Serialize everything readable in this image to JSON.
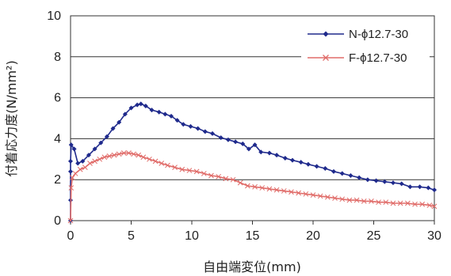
{
  "chart_data": {
    "type": "line",
    "title": "",
    "xlabel": "自由端変位(mm)",
    "ylabel": "付着応力度(N/mm²)",
    "xlim": [
      0,
      30
    ],
    "ylim": [
      0,
      10
    ],
    "x_ticks": [
      "0",
      "5",
      "10",
      "15",
      "20",
      "25",
      "30"
    ],
    "y_ticks": [
      "0",
      "2",
      "4",
      "6",
      "8",
      "10"
    ],
    "grid": "horizontal",
    "legend_position": "top-right",
    "series": [
      {
        "name": "N-ϕ12.7-30",
        "color": "#1f2a8c",
        "marker": "diamond",
        "points": [
          [
            0,
            0
          ],
          [
            0,
            1.0
          ],
          [
            0,
            2.4
          ],
          [
            0,
            2.9
          ],
          [
            0.05,
            3.7
          ],
          [
            0.3,
            3.5
          ],
          [
            0.6,
            2.8
          ],
          [
            1.0,
            2.9
          ],
          [
            1.5,
            3.2
          ],
          [
            2.0,
            3.5
          ],
          [
            2.5,
            3.8
          ],
          [
            3.0,
            4.1
          ],
          [
            3.5,
            4.5
          ],
          [
            4.0,
            4.8
          ],
          [
            4.5,
            5.2
          ],
          [
            5.0,
            5.5
          ],
          [
            5.5,
            5.65
          ],
          [
            5.8,
            5.7
          ],
          [
            6.2,
            5.6
          ],
          [
            6.7,
            5.4
          ],
          [
            7.3,
            5.3
          ],
          [
            7.8,
            5.2
          ],
          [
            8.3,
            5.1
          ],
          [
            8.8,
            4.9
          ],
          [
            9.3,
            4.7
          ],
          [
            9.9,
            4.6
          ],
          [
            10.5,
            4.5
          ],
          [
            11.1,
            4.35
          ],
          [
            11.7,
            4.25
          ],
          [
            12.4,
            4.05
          ],
          [
            13.0,
            3.95
          ],
          [
            13.6,
            3.85
          ],
          [
            14.2,
            3.75
          ],
          [
            14.7,
            3.5
          ],
          [
            15.2,
            3.7
          ],
          [
            15.7,
            3.35
          ],
          [
            16.4,
            3.3
          ],
          [
            17.0,
            3.2
          ],
          [
            17.7,
            3.05
          ],
          [
            18.3,
            2.95
          ],
          [
            19.0,
            2.85
          ],
          [
            19.6,
            2.75
          ],
          [
            20.3,
            2.65
          ],
          [
            21.0,
            2.55
          ],
          [
            21.7,
            2.4
          ],
          [
            22.4,
            2.3
          ],
          [
            23.1,
            2.2
          ],
          [
            23.8,
            2.1
          ],
          [
            24.5,
            2.0
          ],
          [
            25.2,
            1.95
          ],
          [
            25.9,
            1.9
          ],
          [
            26.6,
            1.85
          ],
          [
            27.3,
            1.8
          ],
          [
            28.0,
            1.65
          ],
          [
            28.8,
            1.65
          ],
          [
            29.5,
            1.6
          ],
          [
            30,
            1.5
          ]
        ]
      },
      {
        "name": "F-ϕ12.7-30",
        "color": "#e06b68",
        "marker": "x",
        "points": [
          [
            0,
            0
          ],
          [
            0.05,
            1.6
          ],
          [
            0.15,
            2.1
          ],
          [
            0.4,
            2.3
          ],
          [
            0.8,
            2.5
          ],
          [
            1.2,
            2.6
          ],
          [
            1.6,
            2.8
          ],
          [
            2.0,
            2.9
          ],
          [
            2.4,
            3.0
          ],
          [
            2.8,
            3.1
          ],
          [
            3.2,
            3.15
          ],
          [
            3.6,
            3.2
          ],
          [
            4.0,
            3.25
          ],
          [
            4.4,
            3.3
          ],
          [
            4.8,
            3.3
          ],
          [
            5.2,
            3.25
          ],
          [
            5.6,
            3.2
          ],
          [
            6.0,
            3.1
          ],
          [
            6.5,
            3.0
          ],
          [
            7.0,
            2.9
          ],
          [
            7.5,
            2.8
          ],
          [
            8.0,
            2.7
          ],
          [
            8.6,
            2.6
          ],
          [
            9.2,
            2.5
          ],
          [
            9.8,
            2.45
          ],
          [
            10.4,
            2.4
          ],
          [
            11.0,
            2.3
          ],
          [
            11.6,
            2.2
          ],
          [
            12.2,
            2.15
          ],
          [
            12.8,
            2.05
          ],
          [
            13.4,
            2.0
          ],
          [
            14.0,
            1.85
          ],
          [
            14.6,
            1.7
          ],
          [
            15.2,
            1.65
          ],
          [
            15.8,
            1.6
          ],
          [
            16.4,
            1.55
          ],
          [
            17.0,
            1.5
          ],
          [
            17.6,
            1.45
          ],
          [
            18.2,
            1.4
          ],
          [
            18.8,
            1.35
          ],
          [
            19.4,
            1.3
          ],
          [
            20.0,
            1.25
          ],
          [
            20.6,
            1.2
          ],
          [
            21.2,
            1.15
          ],
          [
            21.8,
            1.1
          ],
          [
            22.4,
            1.05
          ],
          [
            23.0,
            1.0
          ],
          [
            23.6,
            1.0
          ],
          [
            24.2,
            0.95
          ],
          [
            24.8,
            0.95
          ],
          [
            25.4,
            0.9
          ],
          [
            26.0,
            0.9
          ],
          [
            26.6,
            0.85
          ],
          [
            27.2,
            0.85
          ],
          [
            27.8,
            0.85
          ],
          [
            28.4,
            0.8
          ],
          [
            29.0,
            0.8
          ],
          [
            29.6,
            0.75
          ],
          [
            30,
            0.7
          ]
        ]
      }
    ]
  }
}
